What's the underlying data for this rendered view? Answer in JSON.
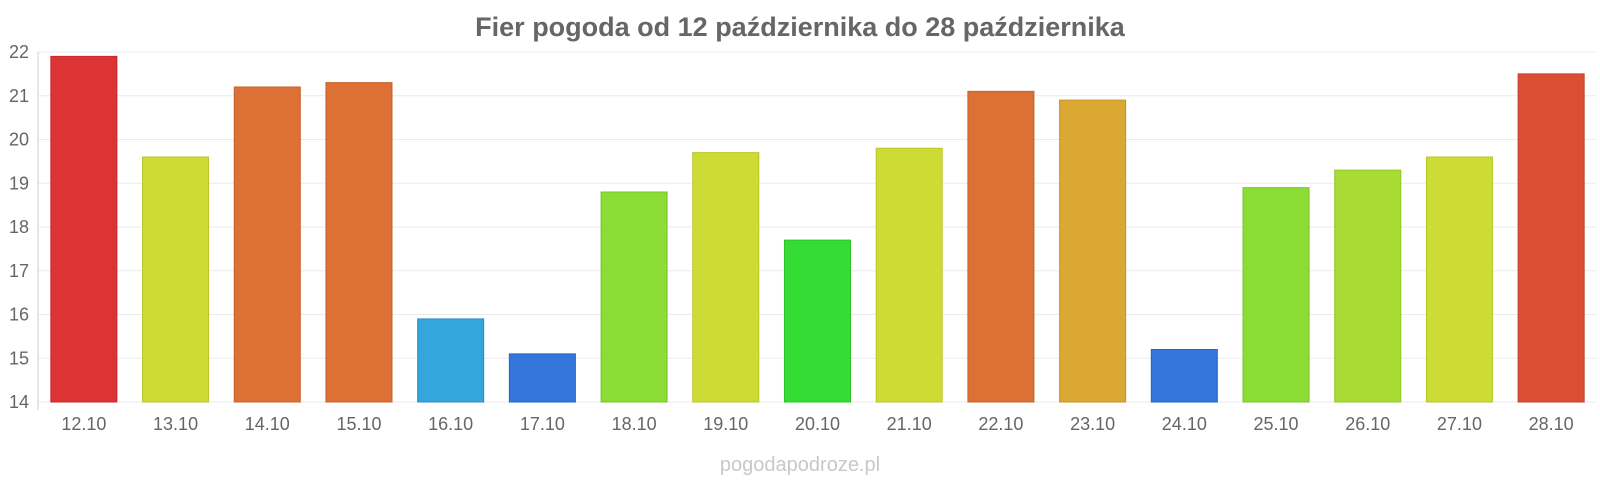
{
  "watermark": "pogodapodroze.pl",
  "chart_data": {
    "type": "bar",
    "title": "Fier pogoda od 12 października do 28 października",
    "xlabel": "",
    "ylabel": "",
    "ylim": [
      14,
      22
    ],
    "yticks": [
      14,
      15,
      16,
      17,
      18,
      19,
      20,
      21,
      22
    ],
    "grid": true,
    "legend": "none",
    "categories": [
      "12.10",
      "13.10",
      "14.10",
      "15.10",
      "16.10",
      "17.10",
      "18.10",
      "19.10",
      "20.10",
      "21.10",
      "22.10",
      "23.10",
      "24.10",
      "25.10",
      "26.10",
      "27.10",
      "28.10"
    ],
    "values": [
      21.9,
      19.6,
      21.2,
      21.3,
      15.9,
      15.1,
      18.8,
      19.7,
      17.7,
      19.8,
      21.1,
      20.9,
      15.2,
      18.9,
      19.3,
      19.6,
      21.5
    ],
    "colors": [
      "#dc3434",
      "#cddc34",
      "#dd7034",
      "#dd7034",
      "#34a6dc",
      "#3476dc",
      "#8bdc34",
      "#cddc34",
      "#34dc34",
      "#cddc34",
      "#dd7034",
      "#dca834",
      "#3476dc",
      "#8bdc34",
      "#a8dc34",
      "#cddc34",
      "#dc4e34"
    ],
    "border_colors": [
      "#c42a2a",
      "#b8c52a",
      "#c5602a",
      "#c5602a",
      "#2a8fc4",
      "#2a62c4",
      "#78c42a",
      "#b8c52a",
      "#2ac42a",
      "#b8c52a",
      "#c5602a",
      "#c4932a",
      "#2a62c4",
      "#78c42a",
      "#93c42a",
      "#b8c52a",
      "#c4402a"
    ]
  }
}
